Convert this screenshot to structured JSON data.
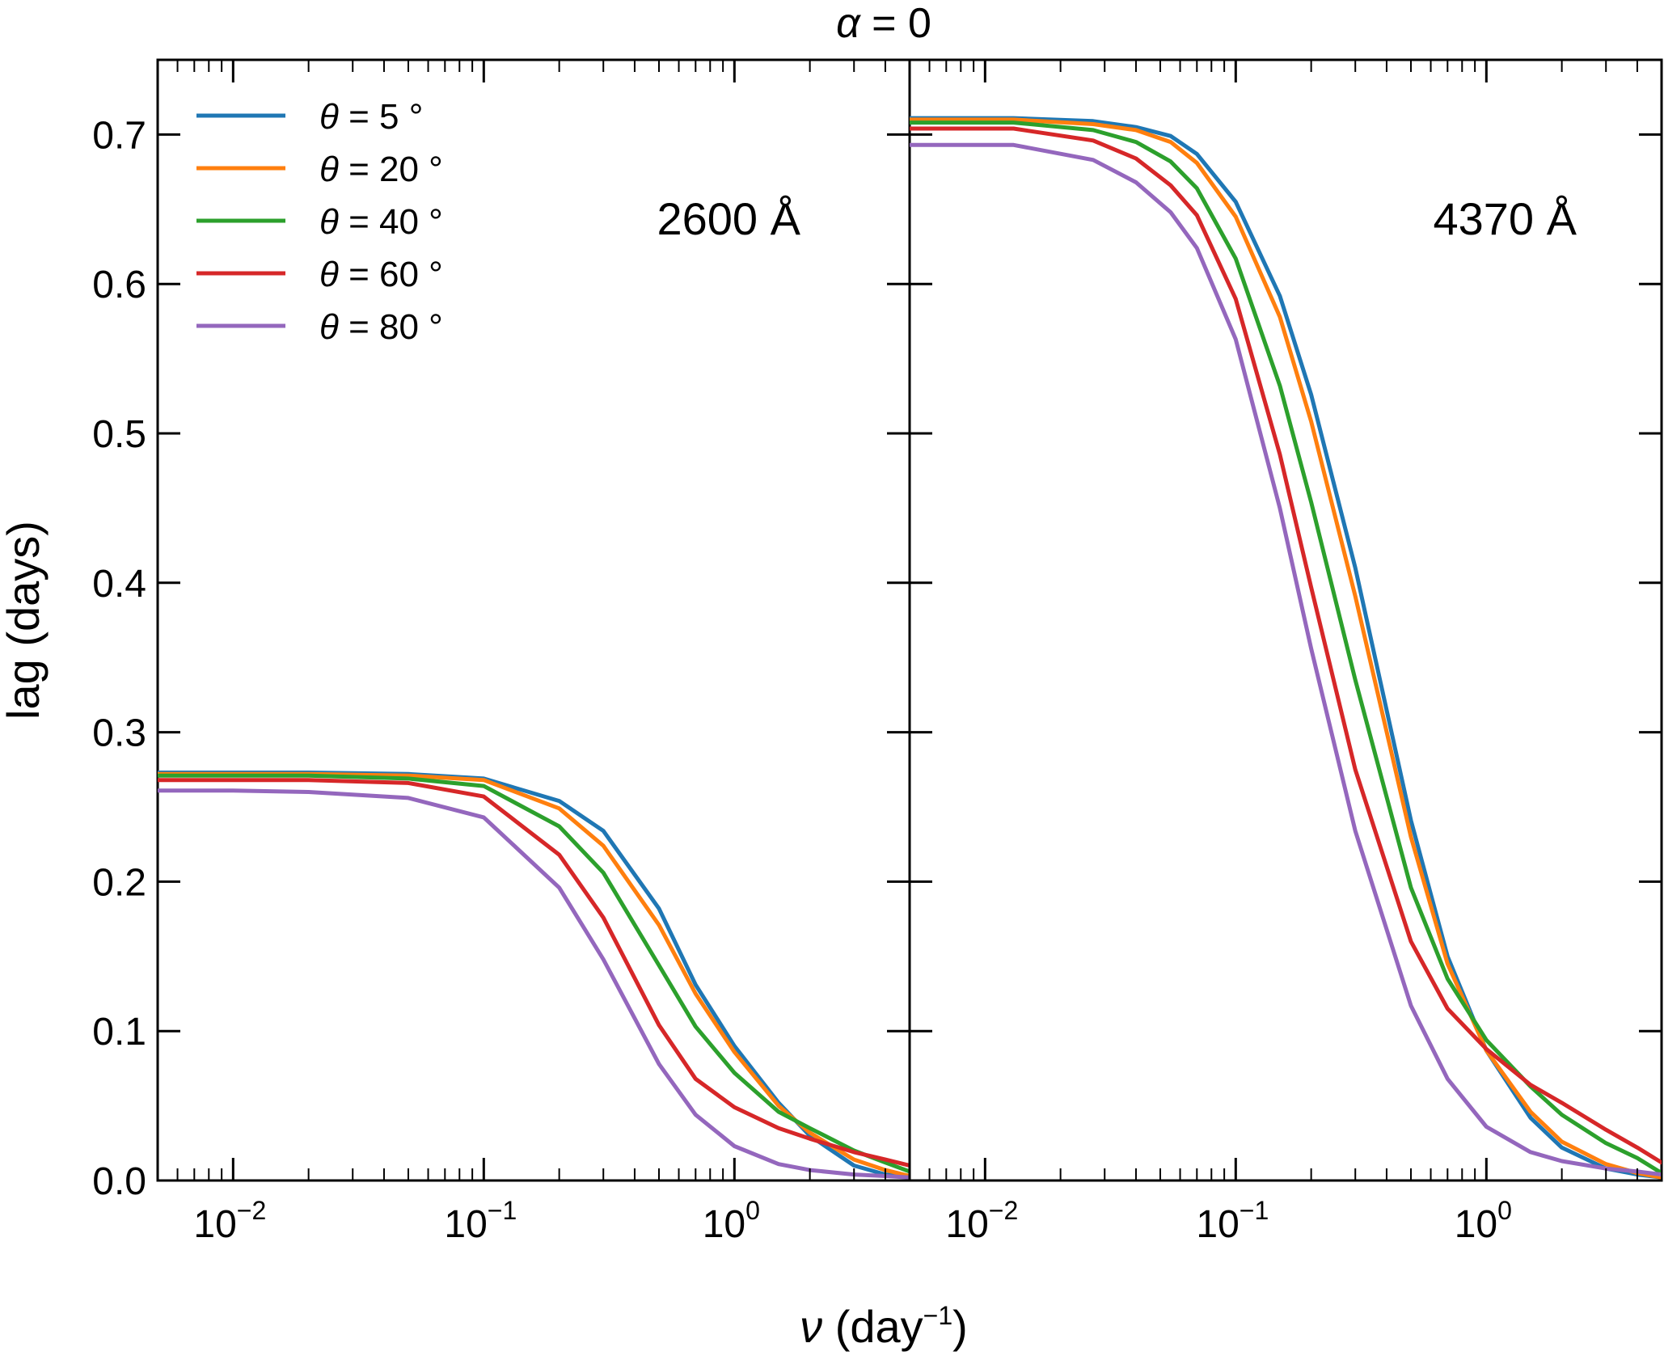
{
  "chart_data": {
    "type": "line",
    "title": "α = 0",
    "xlabel": "ν (day",
    "xlabel_exponent": "−1",
    "xlabel_close": ")",
    "ylabel": "lag (days)",
    "xscale": "log",
    "xlim": [
      0.005,
      5
    ],
    "ylim": [
      0.0,
      0.75
    ],
    "yticks": [
      0.0,
      0.1,
      0.2,
      0.3,
      0.4,
      0.5,
      0.6,
      0.7
    ],
    "ytick_labels": [
      "0.0",
      "0.1",
      "0.2",
      "0.3",
      "0.4",
      "0.5",
      "0.6",
      "0.7"
    ],
    "xticks": [
      0.01,
      0.1,
      1
    ],
    "xtick_labels": [
      {
        "base": "10",
        "exp": "−2"
      },
      {
        "base": "10",
        "exp": "−1"
      },
      {
        "base": "10",
        "exp": "0"
      }
    ],
    "legend": {
      "placement": "top-left of left panel",
      "entries": [
        {
          "label": "θ = 5 °",
          "color": "#1f77b4"
        },
        {
          "label": "θ = 20 °",
          "color": "#ff7f0e"
        },
        {
          "label": "θ = 40 °",
          "color": "#2ca02c"
        },
        {
          "label": "θ = 60 °",
          "color": "#d62728"
        },
        {
          "label": "θ = 80 °",
          "color": "#9467bd"
        }
      ]
    },
    "panels": [
      {
        "annotation": "2600 Å",
        "series": [
          {
            "name": "θ = 5 °",
            "color": "#1f77b4",
            "x": [
              0.005,
              0.01,
              0.02,
              0.05,
              0.1,
              0.2,
              0.3,
              0.5,
              0.7,
              1.0,
              1.5,
              2.0,
              3.0,
              4.0,
              5.0
            ],
            "y": [
              0.273,
              0.273,
              0.273,
              0.272,
              0.269,
              0.254,
              0.234,
              0.182,
              0.131,
              0.09,
              0.052,
              0.03,
              0.01,
              0.004,
              0.002
            ]
          },
          {
            "name": "θ = 20 °",
            "color": "#ff7f0e",
            "x": [
              0.005,
              0.01,
              0.02,
              0.05,
              0.1,
              0.2,
              0.3,
              0.5,
              0.7,
              1.0,
              1.5,
              2.0,
              3.0,
              4.0,
              5.0
            ],
            "y": [
              0.272,
              0.272,
              0.272,
              0.271,
              0.268,
              0.249,
              0.224,
              0.171,
              0.125,
              0.086,
              0.05,
              0.032,
              0.014,
              0.007,
              0.003
            ]
          },
          {
            "name": "θ = 40 °",
            "color": "#2ca02c",
            "x": [
              0.005,
              0.01,
              0.02,
              0.05,
              0.1,
              0.2,
              0.3,
              0.5,
              0.7,
              1.0,
              1.5,
              2.0,
              3.0,
              4.0,
              5.0
            ],
            "y": [
              0.271,
              0.271,
              0.271,
              0.269,
              0.264,
              0.237,
              0.206,
              0.144,
              0.103,
              0.072,
              0.046,
              0.035,
              0.02,
              0.012,
              0.006
            ]
          },
          {
            "name": "θ = 60 °",
            "color": "#d62728",
            "x": [
              0.005,
              0.01,
              0.02,
              0.05,
              0.1,
              0.2,
              0.3,
              0.5,
              0.7,
              1.0,
              1.5,
              2.0,
              3.0,
              4.0,
              5.0
            ],
            "y": [
              0.268,
              0.268,
              0.268,
              0.266,
              0.257,
              0.218,
              0.176,
              0.104,
              0.068,
              0.049,
              0.035,
              0.028,
              0.019,
              0.014,
              0.01
            ]
          },
          {
            "name": "θ = 80 °",
            "color": "#9467bd",
            "x": [
              0.005,
              0.01,
              0.02,
              0.05,
              0.1,
              0.2,
              0.3,
              0.5,
              0.7,
              1.0,
              1.5,
              2.0,
              3.0,
              4.0,
              5.0
            ],
            "y": [
              0.261,
              0.261,
              0.26,
              0.256,
              0.243,
              0.196,
              0.148,
              0.078,
              0.044,
              0.023,
              0.011,
              0.007,
              0.004,
              0.003,
              0.002
            ]
          }
        ]
      },
      {
        "annotation": "4370 Å",
        "series": [
          {
            "name": "θ = 5 °",
            "color": "#1f77b4",
            "x": [
              0.005,
              0.013,
              0.027,
              0.04,
              0.055,
              0.07,
              0.1,
              0.15,
              0.2,
              0.3,
              0.5,
              0.7,
              1.0,
              1.5,
              2.0,
              3.0,
              4.0,
              5.0
            ],
            "y": [
              0.711,
              0.711,
              0.709,
              0.705,
              0.699,
              0.687,
              0.655,
              0.592,
              0.526,
              0.41,
              0.241,
              0.15,
              0.087,
              0.042,
              0.022,
              0.008,
              0.004,
              0.002
            ]
          },
          {
            "name": "θ = 20 °",
            "color": "#ff7f0e",
            "x": [
              0.005,
              0.013,
              0.027,
              0.04,
              0.055,
              0.07,
              0.1,
              0.15,
              0.2,
              0.3,
              0.5,
              0.7,
              1.0,
              1.5,
              2.0,
              3.0,
              4.0,
              5.0
            ],
            "y": [
              0.71,
              0.71,
              0.707,
              0.703,
              0.695,
              0.681,
              0.645,
              0.578,
              0.508,
              0.391,
              0.23,
              0.145,
              0.087,
              0.046,
              0.026,
              0.011,
              0.005,
              0.002
            ]
          },
          {
            "name": "θ = 40 °",
            "color": "#2ca02c",
            "x": [
              0.005,
              0.013,
              0.027,
              0.04,
              0.055,
              0.07,
              0.1,
              0.15,
              0.2,
              0.3,
              0.5,
              0.7,
              1.0,
              1.5,
              2.0,
              3.0,
              4.0,
              5.0
            ],
            "y": [
              0.708,
              0.708,
              0.703,
              0.695,
              0.682,
              0.664,
              0.617,
              0.532,
              0.454,
              0.335,
              0.196,
              0.135,
              0.094,
              0.063,
              0.044,
              0.025,
              0.015,
              0.005
            ]
          },
          {
            "name": "θ = 60 °",
            "color": "#d62728",
            "x": [
              0.005,
              0.013,
              0.027,
              0.04,
              0.055,
              0.07,
              0.1,
              0.15,
              0.2,
              0.3,
              0.5,
              0.7,
              1.0,
              1.5,
              2.0,
              3.0,
              4.0,
              5.0
            ],
            "y": [
              0.704,
              0.704,
              0.696,
              0.684,
              0.666,
              0.646,
              0.59,
              0.486,
              0.397,
              0.275,
              0.16,
              0.115,
              0.088,
              0.064,
              0.052,
              0.034,
              0.022,
              0.012
            ]
          },
          {
            "name": "θ = 80 °",
            "color": "#9467bd",
            "x": [
              0.005,
              0.013,
              0.027,
              0.04,
              0.055,
              0.07,
              0.1,
              0.15,
              0.2,
              0.3,
              0.5,
              0.7,
              1.0,
              1.5,
              2.0,
              3.0,
              4.0,
              5.0
            ],
            "y": [
              0.693,
              0.693,
              0.683,
              0.668,
              0.648,
              0.624,
              0.563,
              0.45,
              0.356,
              0.234,
              0.117,
              0.068,
              0.036,
              0.019,
              0.013,
              0.008,
              0.006,
              0.004
            ]
          }
        ]
      }
    ]
  }
}
